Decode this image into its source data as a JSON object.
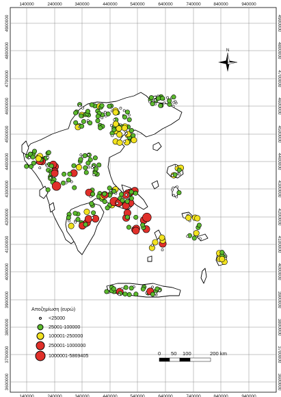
{
  "map": {
    "x_ticks": [
      "140000",
      "240000",
      "340000",
      "440000",
      "540000",
      "640000",
      "740000",
      "840000",
      "940000"
    ],
    "y_ticks": [
      "4900000",
      "4800000",
      "4700000",
      "4600000",
      "4500000",
      "4400000",
      "4300000",
      "4200000",
      "4100000",
      "4000000",
      "3900000",
      "3800000",
      "3700000",
      "3600000"
    ],
    "north_label": "N",
    "legend": {
      "title": "Αποζημίωση (ευρώ)",
      "items": [
        {
          "label": "<25000",
          "color": "#ffffff"
        },
        {
          "label": "25001-100000",
          "color": "#5cba2e"
        },
        {
          "label": "100001-250000",
          "color": "#f2e21f"
        },
        {
          "label": "250001-1000000",
          "color": "#e0302a"
        },
        {
          "label": "1000001-5869405",
          "color": "#e0302a"
        }
      ]
    },
    "scale_bar": {
      "labels": [
        "0",
        "50",
        "100",
        "200 km"
      ]
    }
  }
}
